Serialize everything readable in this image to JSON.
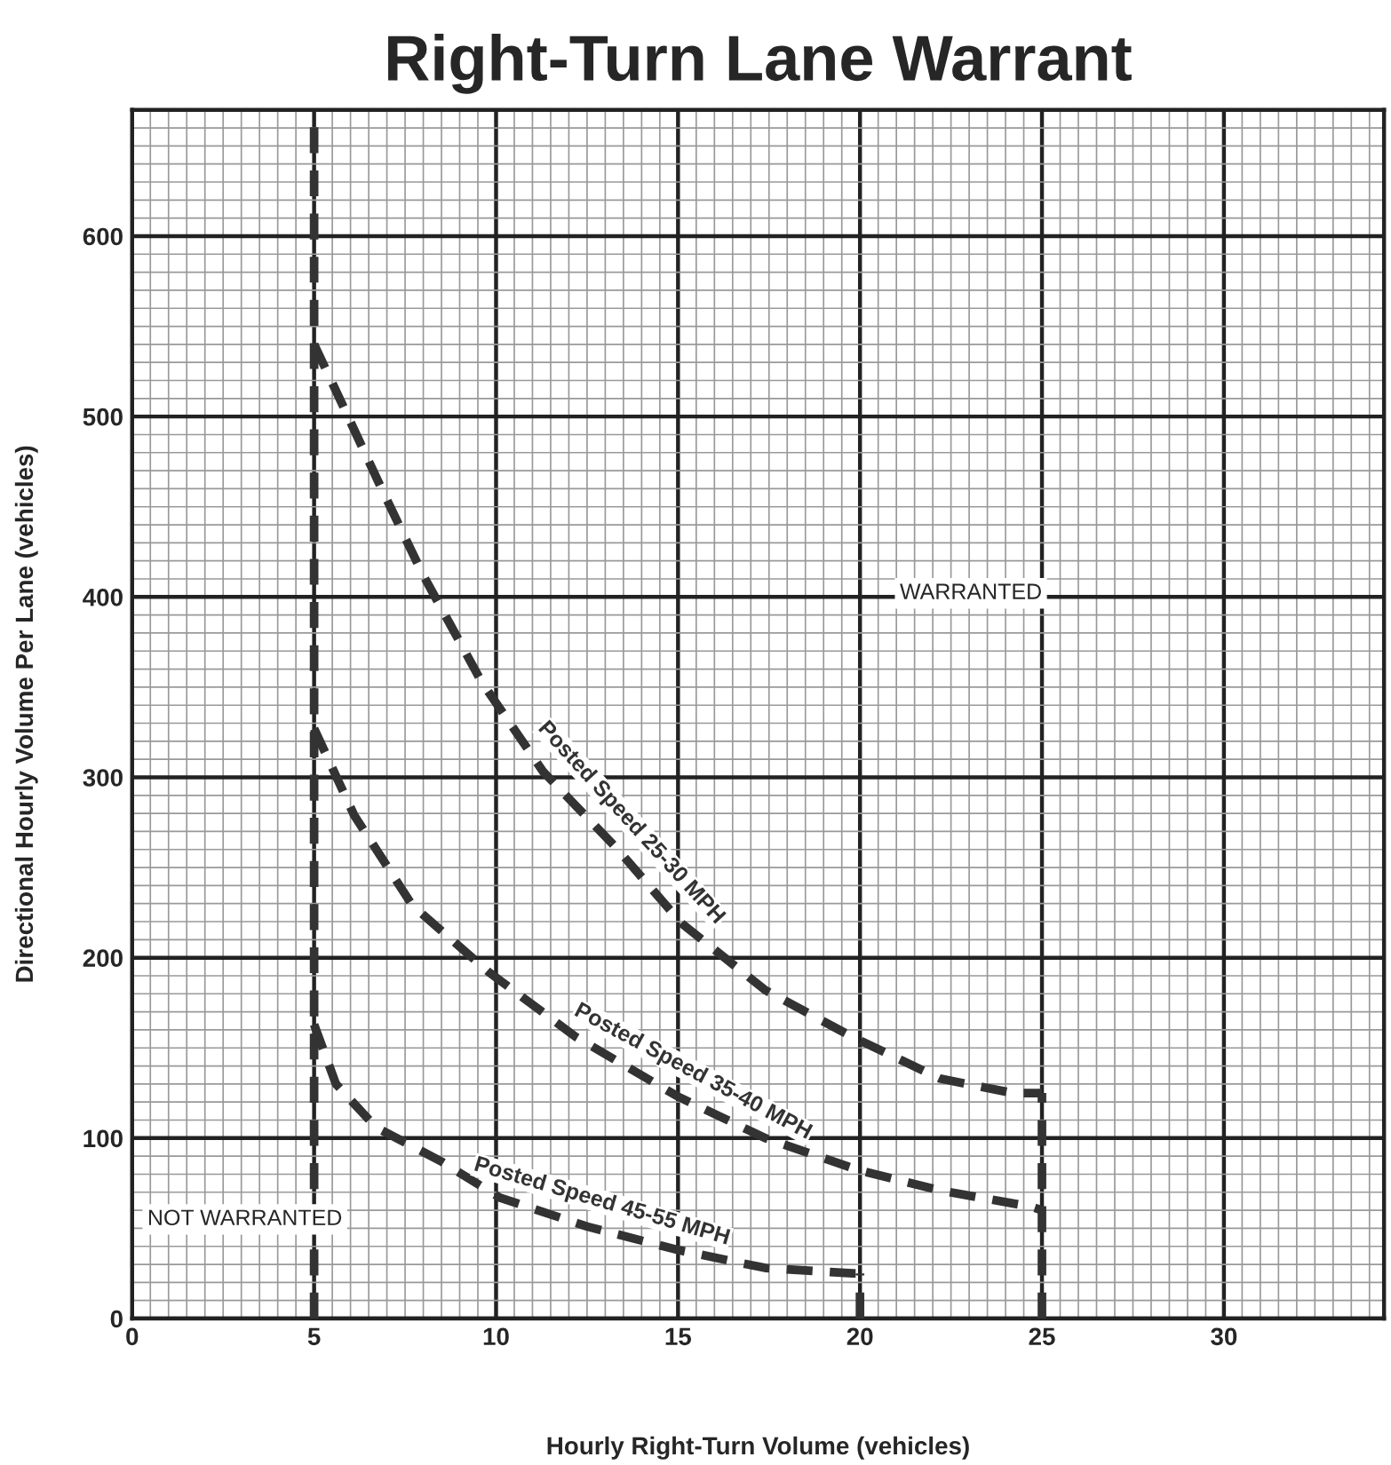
{
  "chart_data": {
    "type": "line",
    "title": "Right-Turn Lane Warrant",
    "xlabel": "Hourly Right-Turn Volume (vehicles)",
    "ylabel": "Directional Hourly Volume Per Lane (vehicles)",
    "xlim": [
      0,
      34.4
    ],
    "ylim": [
      0,
      670
    ],
    "xticks": [
      0,
      5,
      10,
      15,
      20,
      25,
      30
    ],
    "yticks": [
      0,
      100,
      200,
      300,
      400,
      500,
      600
    ],
    "grid": true,
    "legend": false,
    "marker": "none",
    "line_style": "dashed",
    "series": [
      {
        "name": "Posted Speed 25-30 MPH",
        "color": "#333333",
        "x": [
          5,
          5.7,
          6.9,
          8.0,
          9.6,
          11.3,
          13.3,
          15.1,
          17.4,
          19.8,
          22.2,
          24.2,
          25
        ],
        "values": [
          540,
          510,
          458,
          412,
          353,
          303,
          261,
          219,
          182,
          156,
          133,
          125,
          125
        ]
      },
      {
        "name": "Posted Speed 35-40 MPH",
        "color": "#333333",
        "x": [
          5,
          6.1,
          7.7,
          9.8,
          12.2,
          15.0,
          17.4,
          20.0,
          22.2,
          24.7,
          25
        ],
        "values": [
          327,
          279,
          229,
          192,
          156,
          123,
          100,
          82,
          71,
          62,
          60
        ]
      },
      {
        "name": "Posted Speed 45-55 MPH",
        "color": "#333333",
        "x": [
          5,
          5.6,
          6.7,
          8.5,
          10.1,
          12.5,
          15.0,
          17.4,
          19.8,
          20
        ],
        "values": [
          163,
          130,
          106,
          87,
          67,
          51,
          38,
          28,
          25,
          25
        ]
      },
      {
        "color": "#333333",
        "x": [
          5,
          5
        ],
        "values": [
          0,
          670
        ]
      },
      {
        "color": "#333333",
        "x": [
          20,
          20
        ],
        "values": [
          0,
          25
        ]
      },
      {
        "color": "#333333",
        "x": [
          25,
          25
        ],
        "values": [
          0,
          125
        ]
      }
    ],
    "annotations": [
      "WARRANTED",
      "NOT WARRANTED"
    ]
  }
}
